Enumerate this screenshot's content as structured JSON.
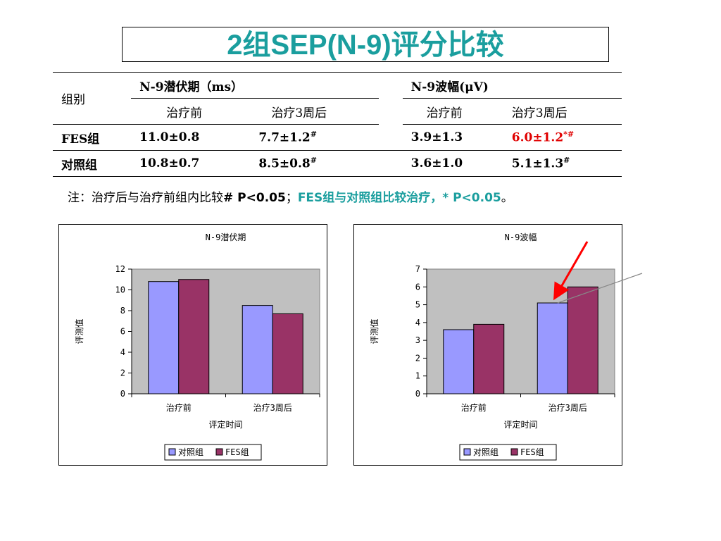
{
  "title": "2组SEP(N-9)评分比较",
  "table": {
    "group_label": "组别",
    "latency_header": "N-9潜伏期（ms）",
    "amplitude_header": "N-9波幅(μV)",
    "before": "治疗前",
    "after": "治疗3周后",
    "rows": [
      {
        "group": "FES组",
        "lat_before": "11.0±0.8",
        "lat_after": "7.7±1.2",
        "lat_after_mark": "#",
        "amp_before": "3.9±1.3",
        "amp_after": "6.0±1.2",
        "amp_after_mark": "*#"
      },
      {
        "group": "对照组",
        "lat_before": "10.8±0.7",
        "lat_after": "8.5±0.8",
        "lat_after_mark": "#",
        "amp_before": "3.6±1.0",
        "amp_after": "5.1±1.3",
        "amp_after_mark": "#"
      }
    ]
  },
  "note": {
    "part1": "注：治疗后与治疗前组内比较",
    "part2": "# P<0.05",
    "part3": "；",
    "part4": "FES组与对照组比较治疗，* P<0.05",
    "part5": "。"
  },
  "colors": {
    "title": "#1a9e9e",
    "control": "#9999ff",
    "fes": "#993366",
    "plot_bg": "#c0c0c0",
    "arrow": "#ff0000"
  },
  "chart_data": [
    {
      "type": "bar",
      "title": "N-9潜伏期",
      "categories": [
        "治疗前",
        "治疗3周后"
      ],
      "series": [
        {
          "name": "对照组",
          "values": [
            10.8,
            8.5
          ]
        },
        {
          "name": "FES组",
          "values": [
            11.0,
            7.7
          ]
        }
      ],
      "xlabel": "评定时间",
      "ylabel": "评测值",
      "ylim": [
        0,
        12
      ],
      "yticks": [
        0,
        2,
        4,
        6,
        8,
        10,
        12
      ],
      "legend": "bottom"
    },
    {
      "type": "bar",
      "title": "N-9波幅",
      "categories": [
        "治疗前",
        "治疗3周后"
      ],
      "series": [
        {
          "name": "对照组",
          "values": [
            3.6,
            5.1
          ]
        },
        {
          "name": "FES组",
          "values": [
            3.9,
            6.0
          ]
        }
      ],
      "xlabel": "评定时间",
      "ylabel": "评测值",
      "ylim": [
        0,
        7
      ],
      "yticks": [
        0,
        1,
        2,
        3,
        4,
        5,
        6,
        7
      ],
      "legend": "bottom"
    }
  ]
}
